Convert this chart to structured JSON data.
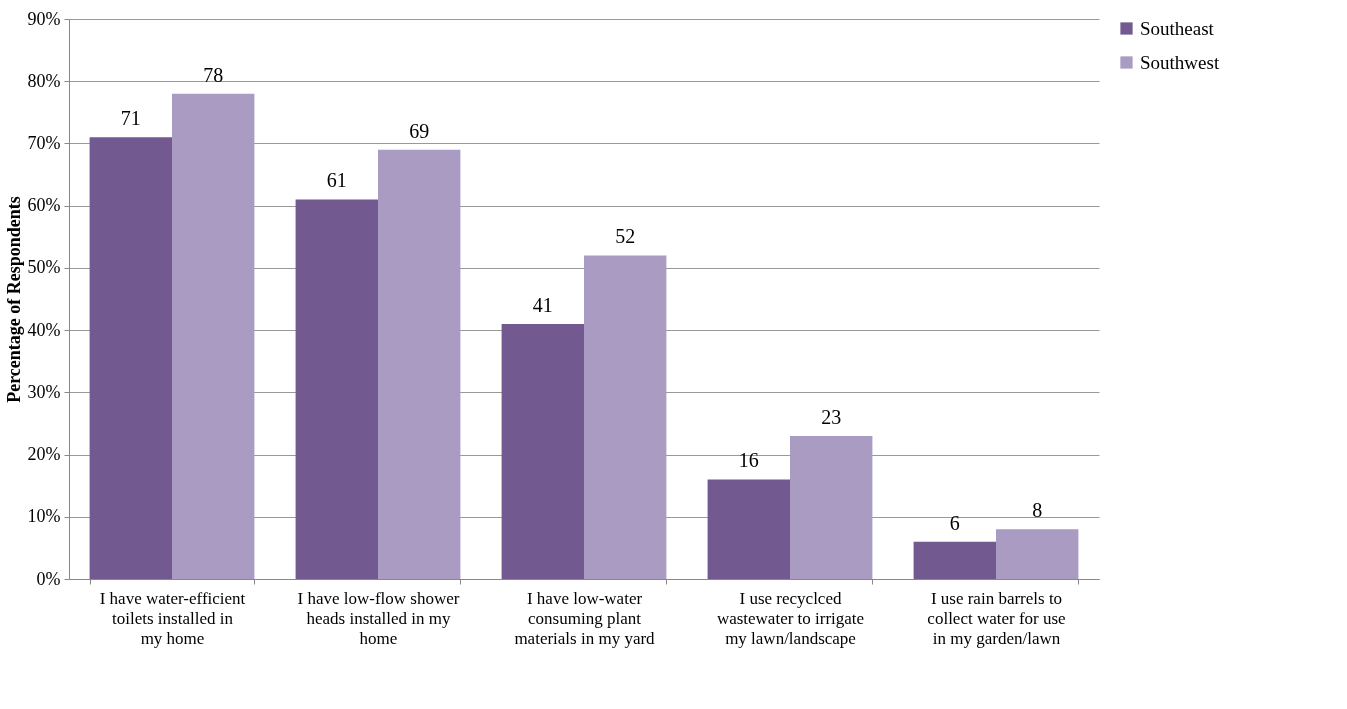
{
  "chart_data": {
    "type": "bar",
    "ylabel": "Percentage of Respondents",
    "categories": [
      "I have water-efficient toilets installed in my home",
      "I have low-flow shower heads installed in my home",
      "I have low-water consuming plant materials in my yard",
      "I use recyclced wastewater to irrigate my lawn/landscape",
      "I use rain barrels to collect water for use in my garden/lawn"
    ],
    "series": [
      {
        "name": "Southeast",
        "color": "#72598f",
        "values": [
          71,
          61,
          41,
          16,
          6
        ]
      },
      {
        "name": "Southwest",
        "color": "#a99bc1",
        "values": [
          78,
          69,
          52,
          23,
          8
        ]
      }
    ],
    "ylim": [
      0,
      90
    ],
    "yticks": [
      {
        "value": 0,
        "label": "0%"
      },
      {
        "value": 10,
        "label": "10%"
      },
      {
        "value": 20,
        "label": "20%"
      },
      {
        "value": 30,
        "label": "30%"
      },
      {
        "value": 40,
        "label": "40%"
      },
      {
        "value": 50,
        "label": "50%"
      },
      {
        "value": 60,
        "label": "60%"
      },
      {
        "value": 70,
        "label": "70%"
      },
      {
        "value": 80,
        "label": "80%"
      },
      {
        "value": 90,
        "label": "90%"
      }
    ],
    "grid": "y",
    "legend": "right",
    "data_labels": true
  }
}
